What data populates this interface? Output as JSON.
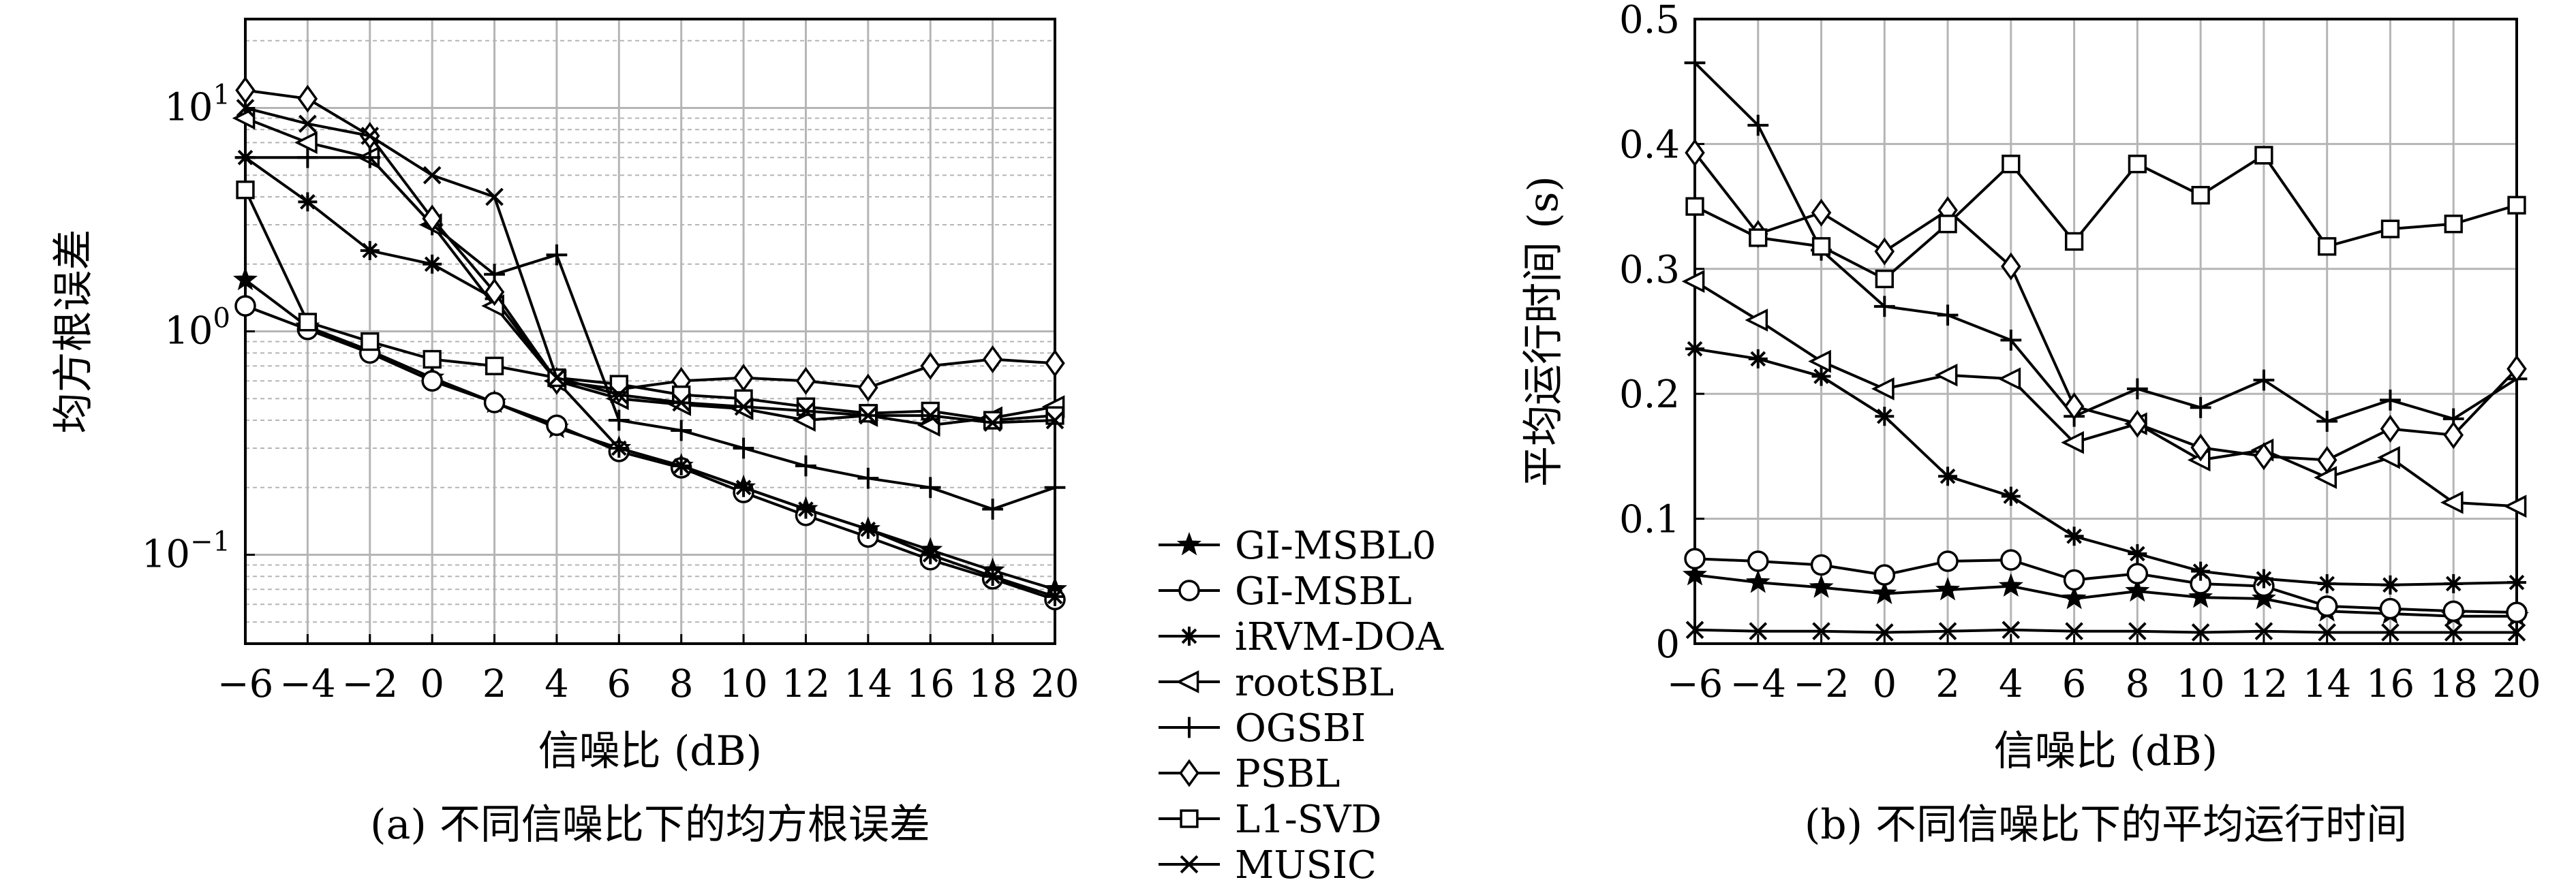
{
  "chart_data": [
    {
      "type": "line",
      "id": "a",
      "caption": "(a) 不同信噪比下的均方根误差",
      "xlabel": "信噪比 (dB)",
      "ylabel": "均方根误差",
      "yscale": "log",
      "ylim": [
        0.04,
        25
      ],
      "xlim": [
        -6,
        20
      ],
      "x": [
        -6,
        -4,
        -2,
        0,
        2,
        4,
        6,
        8,
        10,
        12,
        14,
        16,
        18,
        20
      ],
      "xticks": [
        "−6",
        "−4",
        "−2",
        "0",
        "2",
        "4",
        "6",
        "8",
        "10",
        "12",
        "14",
        "16",
        "18",
        "20"
      ],
      "yticks": [
        {
          "value": 0.1,
          "base": "10",
          "exp": "−1"
        },
        {
          "value": 1,
          "base": "10",
          "exp": "0"
        },
        {
          "value": 10,
          "base": "10",
          "exp": "1"
        }
      ],
      "series": [
        {
          "name": "GI-MSBL0",
          "marker": "star",
          "values": [
            1.7,
            1.05,
            0.82,
            0.62,
            0.48,
            0.37,
            0.3,
            0.25,
            0.2,
            0.16,
            0.13,
            0.105,
            0.085,
            0.07
          ]
        },
        {
          "name": "GI-MSBL",
          "marker": "circle",
          "values": [
            1.3,
            1.02,
            0.8,
            0.6,
            0.48,
            0.38,
            0.29,
            0.245,
            0.19,
            0.15,
            0.12,
            0.095,
            0.078,
            0.063
          ]
        },
        {
          "name": "iRVM-DOA",
          "marker": "asterisk",
          "values": [
            6.0,
            3.8,
            2.3,
            2.0,
            1.4,
            0.6,
            0.3,
            0.25,
            0.2,
            0.16,
            0.13,
            0.1,
            0.08,
            0.065
          ]
        },
        {
          "name": "rootSBL",
          "marker": "triangle-left",
          "values": [
            9.0,
            7.0,
            6.0,
            3.0,
            1.3,
            0.6,
            0.5,
            0.47,
            0.45,
            0.4,
            0.42,
            0.38,
            0.41,
            0.46
          ]
        },
        {
          "name": "OGSBI",
          "marker": "plus",
          "values": [
            6.0,
            6.0,
            6.0,
            3.0,
            1.8,
            2.2,
            0.4,
            0.36,
            0.3,
            0.25,
            0.22,
            0.2,
            0.16,
            0.2
          ]
        },
        {
          "name": "PSBL",
          "marker": "diamond",
          "values": [
            12.0,
            11.0,
            7.5,
            3.2,
            1.5,
            0.6,
            0.55,
            0.6,
            0.62,
            0.6,
            0.56,
            0.7,
            0.75,
            0.72
          ]
        },
        {
          "name": "L1-SVD",
          "marker": "square",
          "values": [
            4.3,
            1.1,
            0.9,
            0.75,
            0.7,
            0.62,
            0.58,
            0.52,
            0.5,
            0.46,
            0.43,
            0.44,
            0.4,
            0.42
          ]
        },
        {
          "name": "MUSIC",
          "marker": "cross",
          "values": [
            10.0,
            8.5,
            7.5,
            5.0,
            4.0,
            0.62,
            0.52,
            0.48,
            0.46,
            0.44,
            0.42,
            0.42,
            0.39,
            0.4
          ]
        }
      ]
    },
    {
      "type": "line",
      "id": "b",
      "caption": "(b) 不同信噪比下的平均运行时间",
      "xlabel": "信噪比 (dB)",
      "ylabel": "平均运行时间 (s)",
      "yscale": "linear",
      "ylim": [
        0,
        0.5
      ],
      "xlim": [
        -6,
        20
      ],
      "x": [
        -6,
        -4,
        -2,
        0,
        2,
        4,
        6,
        8,
        10,
        12,
        14,
        16,
        18,
        20
      ],
      "xticks": [
        "−6",
        "−4",
        "−2",
        "0",
        "2",
        "4",
        "6",
        "8",
        "10",
        "12",
        "14",
        "16",
        "18",
        "20"
      ],
      "yticks": [
        {
          "value": 0,
          "label": "0"
        },
        {
          "value": 0.1,
          "label": "0.1"
        },
        {
          "value": 0.2,
          "label": "0.2"
        },
        {
          "value": 0.3,
          "label": "0.3"
        },
        {
          "value": 0.4,
          "label": "0.4"
        },
        {
          "value": 0.5,
          "label": "0.5"
        }
      ],
      "series": [
        {
          "name": "GI-MSBL0",
          "marker": "star",
          "values": [
            0.055,
            0.049,
            0.045,
            0.04,
            0.043,
            0.046,
            0.036,
            0.042,
            0.037,
            0.036,
            0.026,
            0.024,
            0.022,
            0.022
          ]
        },
        {
          "name": "GI-MSBL",
          "marker": "circle",
          "values": [
            0.068,
            0.066,
            0.063,
            0.055,
            0.066,
            0.067,
            0.051,
            0.056,
            0.048,
            0.046,
            0.03,
            0.028,
            0.026,
            0.025
          ]
        },
        {
          "name": "iRVM-DOA",
          "marker": "asterisk",
          "values": [
            0.236,
            0.228,
            0.214,
            0.182,
            0.134,
            0.118,
            0.086,
            0.072,
            0.058,
            0.052,
            0.048,
            0.047,
            0.048,
            0.049
          ]
        },
        {
          "name": "rootSBL",
          "marker": "triangle-left",
          "values": [
            0.29,
            0.259,
            0.226,
            0.204,
            0.215,
            0.212,
            0.161,
            0.176,
            0.147,
            0.155,
            0.133,
            0.149,
            0.113,
            0.11
          ]
        },
        {
          "name": "OGSBI",
          "marker": "plus",
          "values": [
            0.465,
            0.415,
            0.315,
            0.27,
            0.263,
            0.243,
            0.182,
            0.204,
            0.189,
            0.211,
            0.178,
            0.195,
            0.18,
            0.212
          ]
        },
        {
          "name": "PSBL",
          "marker": "diamond",
          "values": [
            0.393,
            0.328,
            0.345,
            0.314,
            0.347,
            0.302,
            0.19,
            0.176,
            0.157,
            0.15,
            0.147,
            0.172,
            0.167,
            0.22
          ]
        },
        {
          "name": "L1-SVD",
          "marker": "square",
          "values": [
            0.35,
            0.325,
            0.318,
            0.292,
            0.336,
            0.384,
            0.322,
            0.384,
            0.359,
            0.391,
            0.318,
            0.332,
            0.336,
            0.351
          ]
        },
        {
          "name": "MUSIC",
          "marker": "cross",
          "values": [
            0.011,
            0.01,
            0.01,
            0.009,
            0.01,
            0.011,
            0.01,
            0.01,
            0.009,
            0.01,
            0.009,
            0.009,
            0.009,
            0.009
          ]
        }
      ]
    }
  ],
  "legend": {
    "entries": [
      {
        "name": "GI-MSBL0",
        "marker": "star"
      },
      {
        "name": "GI-MSBL",
        "marker": "circle"
      },
      {
        "name": "iRVM-DOA",
        "marker": "asterisk"
      },
      {
        "name": "rootSBL",
        "marker": "triangle-left"
      },
      {
        "name": "OGSBI",
        "marker": "plus"
      },
      {
        "name": "PSBL",
        "marker": "diamond"
      },
      {
        "name": "L1-SVD",
        "marker": "square"
      },
      {
        "name": "MUSIC",
        "marker": "cross"
      }
    ]
  }
}
